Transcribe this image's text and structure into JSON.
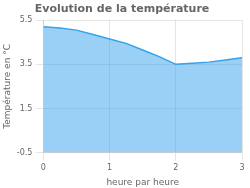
{
  "chart_data": {
    "type": "area",
    "title": "Evolution de la température",
    "x_label": "heure par heure",
    "y_label": "Température en °C",
    "x": [
      0,
      0.25,
      0.5,
      0.75,
      1.0,
      1.25,
      1.5,
      1.75,
      2.0,
      2.25,
      2.5,
      2.75,
      3.0
    ],
    "values": [
      5.2,
      5.15,
      5.05,
      4.85,
      4.65,
      4.45,
      4.15,
      3.85,
      3.5,
      3.55,
      3.6,
      3.7,
      3.8
    ],
    "xlim": [
      0,
      3
    ],
    "xticks": [
      0,
      1,
      2,
      3
    ],
    "ylim": [
      -0.5,
      5.5
    ],
    "yticks": [
      -0.5,
      1.5,
      3.5,
      5.5
    ],
    "grid": true
  }
}
